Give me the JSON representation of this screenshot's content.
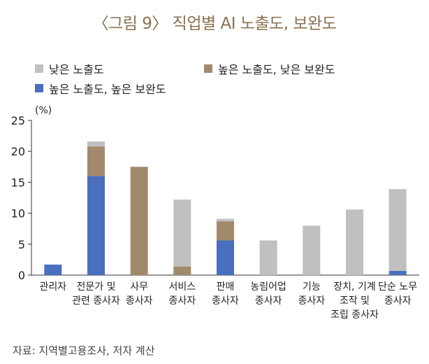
{
  "title": "〈그림 9〉 직업별 AI 노출도, 보완도",
  "colors": {
    "low_exposure": "#c0c0c0",
    "high_exp_low_comp": "#a18a6b",
    "high_exp_high_comp": "#4a6fbe",
    "title": "#8a7150",
    "axis": "#333333"
  },
  "legend": {
    "low_exposure": "낮은 노출도",
    "high_exp_low_comp": "높은 노출도, 낮은 보완도",
    "high_exp_high_comp": "높은 노출도, 높은 보완도"
  },
  "source": "자료: 지역별고용조사, 저자 계산",
  "chart_data": {
    "type": "bar",
    "stacked": true,
    "unit_label": "(%)",
    "ylim": [
      0,
      25
    ],
    "yticks": [
      0,
      5,
      10,
      15,
      20,
      25
    ],
    "categories": [
      [
        "관리자"
      ],
      [
        "전문가 및",
        "관련 종사자"
      ],
      [
        "사무",
        "종사자"
      ],
      [
        "서비스",
        "종사자"
      ],
      [
        "판매",
        "종사자"
      ],
      [
        "농림어업",
        "종사자"
      ],
      [
        "기능",
        "종사자"
      ],
      [
        "장치, 기계",
        "조작 및",
        "조립 종사자"
      ],
      [
        "단순 노무",
        "종사자"
      ]
    ],
    "series": [
      {
        "name": "높은 노출도, 높은 보완도",
        "key": "high_exp_high_comp",
        "values": [
          1.7,
          16.0,
          0.0,
          0.0,
          5.6,
          0.0,
          0.0,
          0.0,
          0.7
        ]
      },
      {
        "name": "높은 노출도, 낮은 보완도",
        "key": "high_exp_low_comp",
        "values": [
          0.0,
          4.8,
          17.5,
          1.4,
          3.1,
          0.0,
          0.0,
          0.0,
          0.0
        ]
      },
      {
        "name": "낮은 노출도",
        "key": "low_exposure",
        "values": [
          0.0,
          0.8,
          0.0,
          10.8,
          0.4,
          5.6,
          8.0,
          10.6,
          13.2
        ]
      }
    ]
  }
}
